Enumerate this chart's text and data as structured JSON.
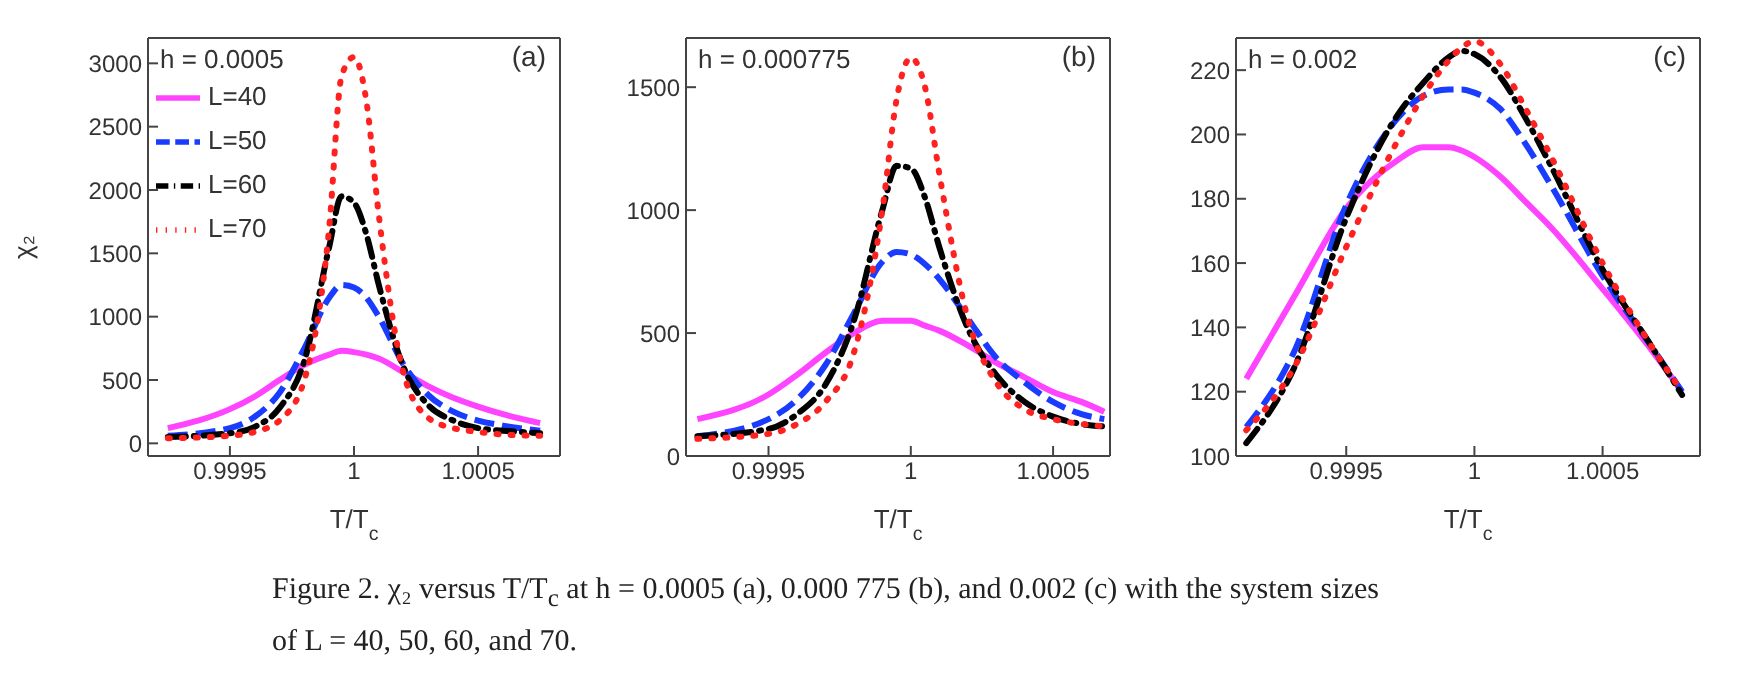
{
  "chart_data": [
    {
      "type": "line",
      "xlabel": "T/T$_{c}$",
      "ylabel": "χ₂",
      "annotations": [
        "h = 0.0005",
        "(a)",
        "Figure 2. χ₂ versus T/T$_{c}$ at h = 0.0005 (a), 0.000 775 (b), and 0.002 (c) with the system sizes of L = 40, 50, 60, and 70."
      ],
      "legend": "top left",
      "xlim": [
        0.99917,
        1.00083
      ],
      "xticks": [
        0.9995,
        1,
        1.0005
      ],
      "ylim": [
        -100,
        3200
      ],
      "yticks": [
        0,
        500,
        1000,
        1500,
        2000,
        2500,
        3000
      ],
      "x": [
        0.99925,
        0.9995,
        0.9996,
        0.9997,
        0.9998,
        0.9999,
        0.99995,
        1.0,
        1.00005,
        1.0001,
        1.0002,
        1.0003,
        1.0004,
        1.0005,
        1.0006,
        1.00075
      ],
      "series": [
        {
          "name": "L=40",
          "color": "#ff44ff",
          "line_style": "solid",
          "values": [
            120,
            270,
            370,
            500,
            620,
            700,
            730,
            720,
            700,
            670,
            560,
            450,
            360,
            290,
            230,
            160
          ]
        },
        {
          "name": "L=50",
          "color": "#1a3cff",
          "line_style": "dashed",
          "values": [
            60,
            120,
            210,
            400,
            750,
            1150,
            1250,
            1230,
            1150,
            1000,
            620,
            380,
            250,
            180,
            140,
            100
          ]
        },
        {
          "name": "L=60",
          "color": "#000000",
          "line_style": "dashdot",
          "values": [
            50,
            80,
            130,
            280,
            650,
            1550,
            1950,
            1900,
            1650,
            1250,
            600,
            300,
            180,
            120,
            100,
            80
          ]
        },
        {
          "name": "L=70",
          "color": "#ff2020",
          "line_style": "dotted",
          "values": [
            40,
            60,
            90,
            180,
            500,
            1700,
            2900,
            3050,
            2700,
            1800,
            550,
            200,
            120,
            90,
            70,
            60
          ]
        }
      ]
    },
    {
      "type": "line",
      "xlabel": "T/T$_{c}$",
      "annotations": [
        "h = 0.000775",
        "(b)"
      ],
      "xlim": [
        0.99921,
        1.0007
      ],
      "xticks": [
        0.9995,
        1,
        1.0005
      ],
      "ylim": [
        0,
        1700
      ],
      "yticks": [
        0,
        500,
        1000,
        1500
      ],
      "x": [
        0.99925,
        0.9995,
        0.9996,
        0.9997,
        0.9998,
        0.9999,
        0.99995,
        1.0,
        1.00005,
        1.0001,
        1.0002,
        1.0003,
        1.0004,
        1.0005,
        1.0006,
        1.00068
      ],
      "series": [
        {
          "color": "#ff44ff",
          "line_style": "solid",
          "values": [
            150,
            250,
            330,
            420,
            500,
            550,
            550,
            550,
            530,
            510,
            450,
            380,
            320,
            260,
            220,
            180
          ]
        },
        {
          "color": "#1a3cff",
          "line_style": "dashed",
          "values": [
            80,
            150,
            230,
            370,
            580,
            790,
            830,
            820,
            780,
            720,
            560,
            400,
            300,
            220,
            170,
            150
          ]
        },
        {
          "color": "#000000",
          "line_style": "dashdot",
          "values": [
            80,
            110,
            170,
            290,
            550,
            1000,
            1180,
            1170,
            1050,
            850,
            520,
            330,
            220,
            160,
            130,
            120
          ]
        },
        {
          "color": "#ff2020",
          "line_style": "dotted",
          "values": [
            70,
            90,
            130,
            220,
            420,
            1000,
            1450,
            1620,
            1500,
            1150,
            560,
            300,
            190,
            150,
            130,
            120
          ]
        }
      ]
    },
    {
      "type": "line",
      "xlabel": "T/T$_{c}$",
      "annotations": [
        "h = 0.002",
        "(c)"
      ],
      "xlim": [
        0.99907,
        1.00088
      ],
      "xticks": [
        0.9995,
        1,
        1.0005
      ],
      "ylim": [
        100,
        230
      ],
      "yticks": [
        100,
        120,
        140,
        160,
        180,
        200,
        220
      ],
      "x": [
        0.99911,
        0.9993,
        0.9995,
        0.9997,
        0.9998,
        0.9999,
        0.99995,
        1.0,
        1.0001,
        1.0002,
        1.0003,
        1.0005,
        1.0007,
        1.00081
      ],
      "series": [
        {
          "color": "#ff44ff",
          "line_style": "solid",
          "values": [
            124,
            150,
            177,
            192,
            196,
            196,
            195,
            193,
            187,
            179,
            171,
            152,
            132,
            120
          ]
        },
        {
          "color": "#1a3cff",
          "line_style": "dashed",
          "values": [
            109,
            133,
            178,
            205,
            212,
            214,
            214,
            213,
            208,
            197,
            184,
            156,
            133,
            120
          ]
        },
        {
          "color": "#000000",
          "line_style": "dashdot",
          "values": [
            104,
            128,
            174,
            206,
            216,
            224,
            226,
            225,
            218,
            205,
            190,
            158,
            133,
            119
          ]
        },
        {
          "color": "#ff2020",
          "line_style": "dotted",
          "values": [
            108,
            128,
            165,
            198,
            212,
            223,
            227,
            229,
            222,
            208,
            193,
            160,
            133,
            120
          ]
        }
      ]
    }
  ]
}
